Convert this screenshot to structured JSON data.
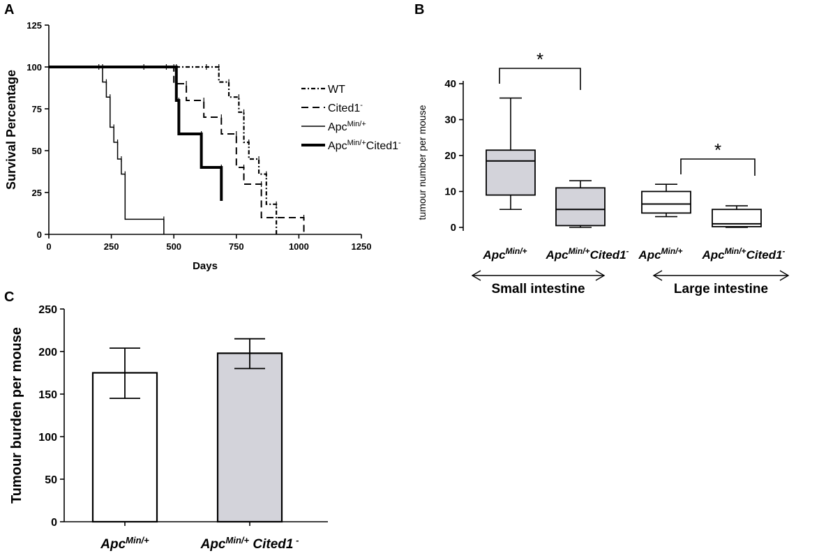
{
  "chart_data": [
    {
      "panel": "A",
      "type": "line",
      "step": true,
      "xlabel": "Days",
      "ylabel": "Survival Percentage",
      "xlim": [
        0,
        1250
      ],
      "ylim": [
        0,
        125
      ],
      "xticks": [
        "0",
        "250",
        "500",
        "750",
        "1000",
        "1250"
      ],
      "yticks": [
        "0",
        "25",
        "50",
        "75",
        "100",
        "125"
      ],
      "legend_position": "right",
      "series": [
        {
          "name": "WT",
          "label_base": "WT",
          "label_sup": "",
          "label_tail": "",
          "style": "dotted-dash",
          "x": [
            0,
            630,
            680,
            720,
            760,
            780,
            800,
            840,
            870,
            910
          ],
          "y": [
            100,
            100,
            91,
            82,
            73,
            55,
            45,
            36,
            18,
            0
          ]
        },
        {
          "name": "Cited1-",
          "label_base": "Cited1",
          "label_sup": "-",
          "label_tail": "",
          "style": "dashed",
          "x": [
            0,
            470,
            500,
            550,
            620,
            690,
            750,
            780,
            850,
            1020
          ],
          "y": [
            100,
            100,
            90,
            80,
            70,
            60,
            40,
            30,
            10,
            0
          ]
        },
        {
          "name": "ApcMin/+",
          "label_base": "Apc",
          "label_sup": "Min/+",
          "label_tail": "",
          "style": "solid-thin",
          "x": [
            0,
            200,
            215,
            230,
            245,
            260,
            275,
            290,
            305,
            460
          ],
          "y": [
            100,
            100,
            91,
            82,
            64,
            55,
            45,
            36,
            9,
            0
          ]
        },
        {
          "name": "ApcMin/+Cited1-",
          "label_base": "Apc",
          "label_sup": "Min/+",
          "label_tail": "Cited1",
          "label_tail_sup": "-",
          "style": "solid-thick",
          "x": [
            0,
            380,
            510,
            520,
            610,
            690
          ],
          "y": [
            100,
            100,
            80,
            60,
            40,
            20
          ]
        }
      ]
    },
    {
      "panel": "B",
      "type": "box",
      "ylabel": "tumour number per mouse",
      "ylim": [
        0,
        40
      ],
      "yticks": [
        "0",
        "10",
        "20",
        "30",
        "40"
      ],
      "boxes": [
        {
          "label_base": "Apc",
          "label_sup": "Min/+",
          "label_tail": "",
          "min": 5,
          "q1": 9,
          "median": 18.5,
          "q3": 21.5,
          "max": 36,
          "fill": "#d3d3da"
        },
        {
          "label_base": "Apc",
          "label_sup": "Min/+",
          "label_tail": "Cited1",
          "label_tail_sup": "-",
          "min": 0,
          "q1": 0.5,
          "median": 5,
          "q3": 11,
          "max": 13,
          "fill": "#d3d3da"
        },
        {
          "label_base": "Apc",
          "label_sup": "Min/+",
          "label_tail": "",
          "min": 3,
          "q1": 4,
          "median": 6.5,
          "q3": 10,
          "max": 12,
          "fill": "#ffffff"
        },
        {
          "label_base": "Apc",
          "label_sup": "Min/+",
          "label_tail": "Cited1",
          "label_tail_sup": "-",
          "min": 0,
          "q1": 0.2,
          "median": 1,
          "q3": 5,
          "max": 6,
          "fill": "#ffffff"
        }
      ],
      "groups": [
        "Small intestine",
        "Large intestine"
      ],
      "significance": [
        "*",
        "*"
      ]
    },
    {
      "panel": "C",
      "type": "bar",
      "ylabel": "Tumour burden per mouse",
      "ylim": [
        0,
        250
      ],
      "yticks": [
        "0",
        "50",
        "100",
        "150",
        "200",
        "250"
      ],
      "bars": [
        {
          "label_base": "Apc",
          "label_sup": "Min/+",
          "label_tail": "",
          "value": 175,
          "err_low": 145,
          "err_high": 204,
          "fill": "#ffffff"
        },
        {
          "label_base": "Apc",
          "label_sup": "Min/+",
          "label_tail": " Cited1",
          "label_tail_sup": " -",
          "value": 198,
          "err_low": 180,
          "err_high": 215,
          "fill": "#d3d3da"
        }
      ]
    }
  ]
}
